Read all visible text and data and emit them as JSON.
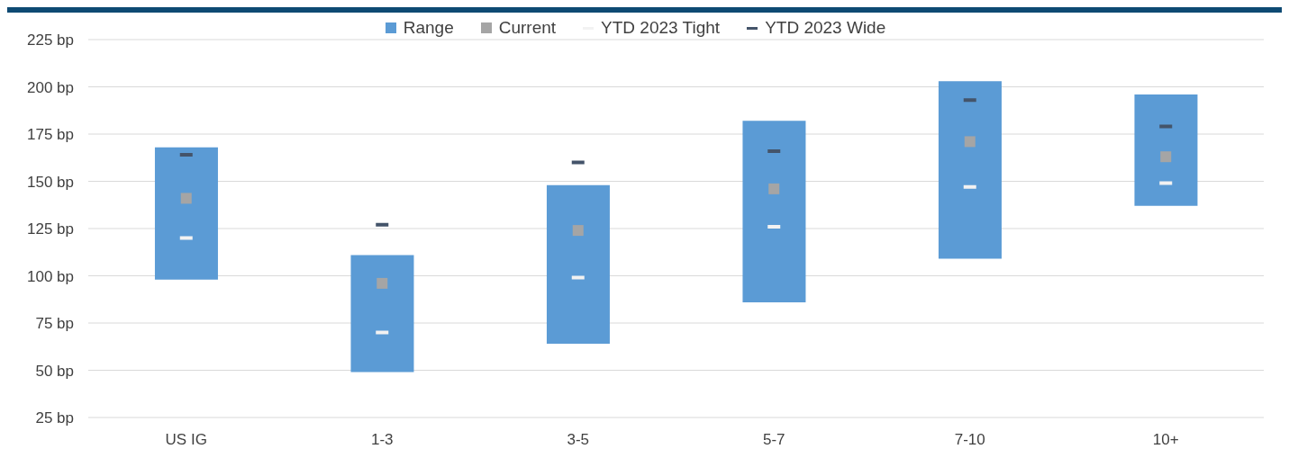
{
  "chart_data": {
    "type": "bar",
    "categories": [
      "US IG",
      "1-3",
      "3-5",
      "5-7",
      "7-10",
      "10+"
    ],
    "series": [
      {
        "name": "Range",
        "type": "bar",
        "color": "#5b9bd5",
        "base": [
          98,
          49,
          64,
          86,
          109,
          137
        ],
        "values": [
          70,
          62,
          84,
          96,
          94,
          59
        ]
      },
      {
        "name": "Current",
        "type": "scatter",
        "marker": "square",
        "color": "#a5a5a5",
        "values": [
          141,
          96,
          124,
          146,
          171,
          163
        ]
      },
      {
        "name": "YTD 2023 Tight",
        "type": "scatter",
        "color": "#f2f2f2",
        "values": [
          120,
          70,
          99,
          126,
          147,
          149
        ]
      },
      {
        "name": "YTD 2023 Wide",
        "type": "scatter",
        "color": "#44546a",
        "values": [
          164,
          127,
          160,
          166,
          193,
          179
        ]
      }
    ],
    "ylim": [
      25,
      225
    ],
    "yticks": [
      {
        "value": 25,
        "label": "25 bp"
      },
      {
        "value": 50,
        "label": "50 bp"
      },
      {
        "value": 75,
        "label": "75 bp"
      },
      {
        "value": 100,
        "label": "100 bp"
      },
      {
        "value": 125,
        "label": "125 bp"
      },
      {
        "value": 150,
        "label": "150 bp"
      },
      {
        "value": 175,
        "label": "175 bp"
      },
      {
        "value": 200,
        "label": "200 bp"
      },
      {
        "value": 225,
        "label": "225 bp"
      }
    ],
    "grid": "y",
    "legend": "top"
  }
}
